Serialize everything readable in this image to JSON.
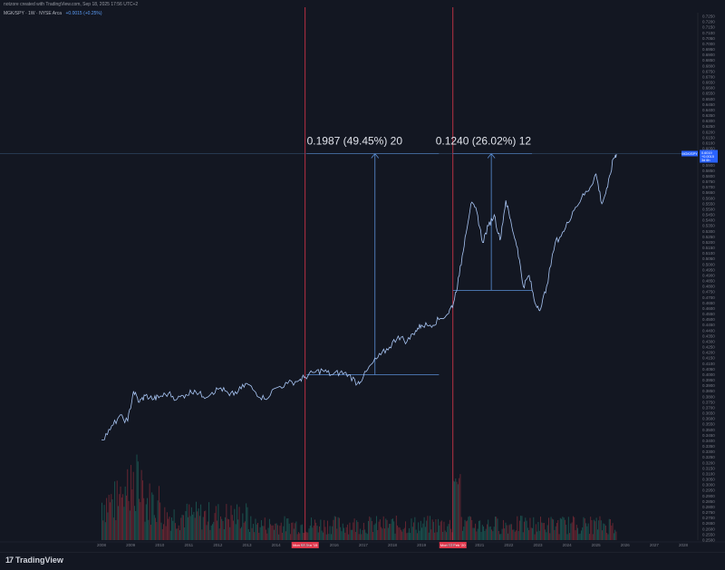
{
  "header": {
    "credit": "notzore created with TradingView.com, Sep 18, 2025 17:56 UTC+2",
    "symbol": "MGK/SPY · 1W · NYSE Arca",
    "change": "+0.0015 (+0.25%)"
  },
  "footer": {
    "brand": "TradingView",
    "logo": "17"
  },
  "colors": {
    "background": "#131722",
    "line": "#a9c6f5",
    "event_line": "#e0374c",
    "measure": "#5b8fd6",
    "vol_up": "#1f6b62",
    "vol_down": "#8b2e3a"
  },
  "chart_data": {
    "type": "line",
    "x_ticks": [
      "2008",
      "2009",
      "2010",
      "2011",
      "2012",
      "2013",
      "2014",
      "2015",
      "2016",
      "2017",
      "2018",
      "2019",
      "2020",
      "2021",
      "2022",
      "2023",
      "2024",
      "2025",
      "2026",
      "2027",
      "2028"
    ],
    "y_ticks": [
      "0.7250",
      "0.7200",
      "0.7150",
      "0.7100",
      "0.7050",
      "0.7000",
      "0.6950",
      "0.6900",
      "0.6850",
      "0.6800",
      "0.6750",
      "0.6700",
      "0.6650",
      "0.6600",
      "0.6550",
      "0.6500",
      "0.6450",
      "0.6400",
      "0.6350",
      "0.6300",
      "0.6250",
      "0.6200",
      "0.6150",
      "0.6100",
      "0.6050",
      "0.6000",
      "0.5950",
      "0.5900",
      "0.5850",
      "0.5800",
      "0.5750",
      "0.5700",
      "0.5650",
      "0.5600",
      "0.5550",
      "0.5500",
      "0.5450",
      "0.5400",
      "0.5350",
      "0.5300",
      "0.5250",
      "0.5200",
      "0.5150",
      "0.5100",
      "0.5050",
      "0.5000",
      "0.4950",
      "0.4900",
      "0.4850",
      "0.4800",
      "0.4750",
      "0.4700",
      "0.4650",
      "0.4600",
      "0.4550",
      "0.4500",
      "0.4450",
      "0.4400",
      "0.4350",
      "0.4300",
      "0.4250",
      "0.4200",
      "0.4150",
      "0.4100",
      "0.4050",
      "0.4000",
      "0.3950",
      "0.3900",
      "0.3850",
      "0.3800",
      "0.3750",
      "0.3700",
      "0.3650",
      "0.3600",
      "0.3550",
      "0.3500",
      "0.3450",
      "0.3400",
      "0.3350",
      "0.3300",
      "0.3250",
      "0.3200",
      "0.3150",
      "0.3100",
      "0.3050",
      "0.3000",
      "0.2950",
      "0.2900",
      "0.2850",
      "0.2800",
      "0.2750",
      "0.2700",
      "0.2650",
      "0.2600",
      "0.2550",
      "0.2500"
    ],
    "series": [
      {
        "x": [
          2008.0,
          2008.3,
          2008.6,
          2008.9,
          2009.1,
          2009.3,
          2009.5,
          2009.8,
          2010.0,
          2010.3,
          2010.6,
          2010.9,
          2011.2,
          2011.5,
          2011.8,
          2012.1,
          2012.4,
          2012.7,
          2013.0,
          2013.3,
          2013.6,
          2014.0,
          2014.4,
          2014.8,
          2015.0,
          2015.3,
          2015.6,
          2015.9,
          2016.2,
          2016.5,
          2016.8,
          2017.0,
          2017.3,
          2017.6,
          2017.9,
          2018.2,
          2018.5,
          2018.8,
          2019.0,
          2019.3,
          2019.6,
          2019.9,
          2020.1,
          2020.3,
          2020.5,
          2020.7,
          2020.9,
          2021.1,
          2021.3,
          2021.5,
          2021.7,
          2021.9,
          2022.1,
          2022.3,
          2022.5,
          2022.7,
          2022.9,
          2023.1,
          2023.3,
          2023.6,
          2023.9,
          2024.2,
          2024.5,
          2024.8,
          2025.0,
          2025.2,
          2025.4,
          2025.6,
          2025.7
        ],
        "values": [
          0.341,
          0.35,
          0.362,
          0.358,
          0.385,
          0.375,
          0.381,
          0.378,
          0.38,
          0.383,
          0.378,
          0.382,
          0.386,
          0.38,
          0.384,
          0.388,
          0.381,
          0.385,
          0.392,
          0.384,
          0.378,
          0.388,
          0.392,
          0.395,
          0.398,
          0.402,
          0.404,
          0.4,
          0.402,
          0.4,
          0.392,
          0.398,
          0.41,
          0.418,
          0.425,
          0.435,
          0.43,
          0.44,
          0.445,
          0.445,
          0.45,
          0.455,
          0.465,
          0.49,
          0.525,
          0.555,
          0.548,
          0.52,
          0.535,
          0.545,
          0.522,
          0.558,
          0.535,
          0.515,
          0.48,
          0.49,
          0.465,
          0.46,
          0.48,
          0.52,
          0.53,
          0.548,
          0.56,
          0.57,
          0.582,
          0.555,
          0.57,
          0.596,
          0.6
        ]
      }
    ],
    "events": [
      "Mon 05 Jan '15",
      "Mon 03 Feb '20"
    ],
    "measurements": [
      "0.1987 (49.45%) 20",
      "0.1240 (26.02%) 12"
    ],
    "last_price": {
      "symbol": "MGK/SPY",
      "value": "0.6019",
      "sub1": "+0.0015",
      "sub2": "3d 6h"
    },
    "ylim": [
      0.25,
      0.725
    ],
    "xlim": [
      2007.5,
      2028.5
    ],
    "grid": false
  }
}
